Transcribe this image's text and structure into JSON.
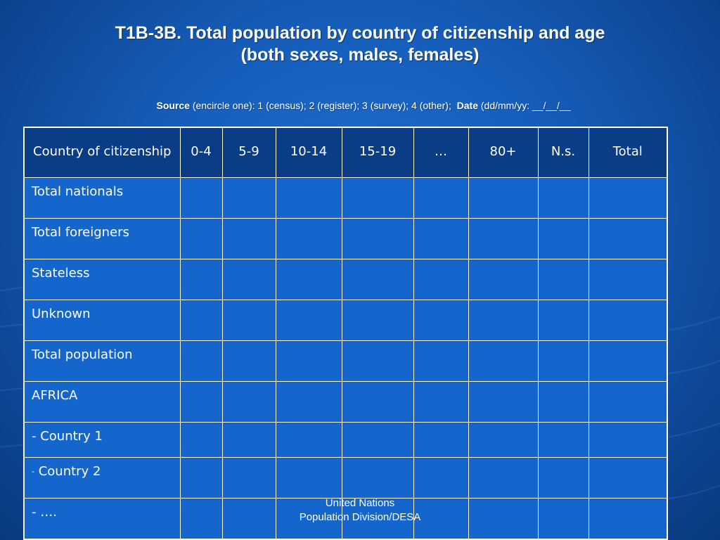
{
  "title": {
    "line1": "T1B-3B. Total population by country of citizenship and age",
    "line2": "(both sexes, males, females)"
  },
  "source_line": {
    "source_label": "Source",
    "source_text": "(encircle one): 1 (census); 2 (register); 3 (survey); 4 (other);",
    "date_label": "Date",
    "date_text": "(dd/mm/yy: __/__/__"
  },
  "table": {
    "header": {
      "country": "Country of citizenship",
      "age_0_4": "0-4",
      "age_5_9": "5-9",
      "age_10_14": "10-14",
      "age_15_19": "15-19",
      "ellipsis": "…",
      "age_80_plus": "80+",
      "not_stated": "N.s.",
      "total": "Total"
    },
    "rows": {
      "total_nationals": "Total nationals",
      "total_foreigners": "Total foreigners",
      "stateless": "Stateless",
      "unknown": "Unknown",
      "total_population": "Total population",
      "africa": "AFRICA",
      "country_1": "- Country 1",
      "country_2_dash": "-",
      "country_2": "Country 2",
      "more": "- …."
    }
  },
  "footer": {
    "line1": "United Nations",
    "line2": "Population Division/DESA"
  },
  "colors": {
    "background": "#155cb8",
    "header_fill": "#0b3d86",
    "cell_fill": "#1466cc",
    "text": "#ffffff"
  }
}
